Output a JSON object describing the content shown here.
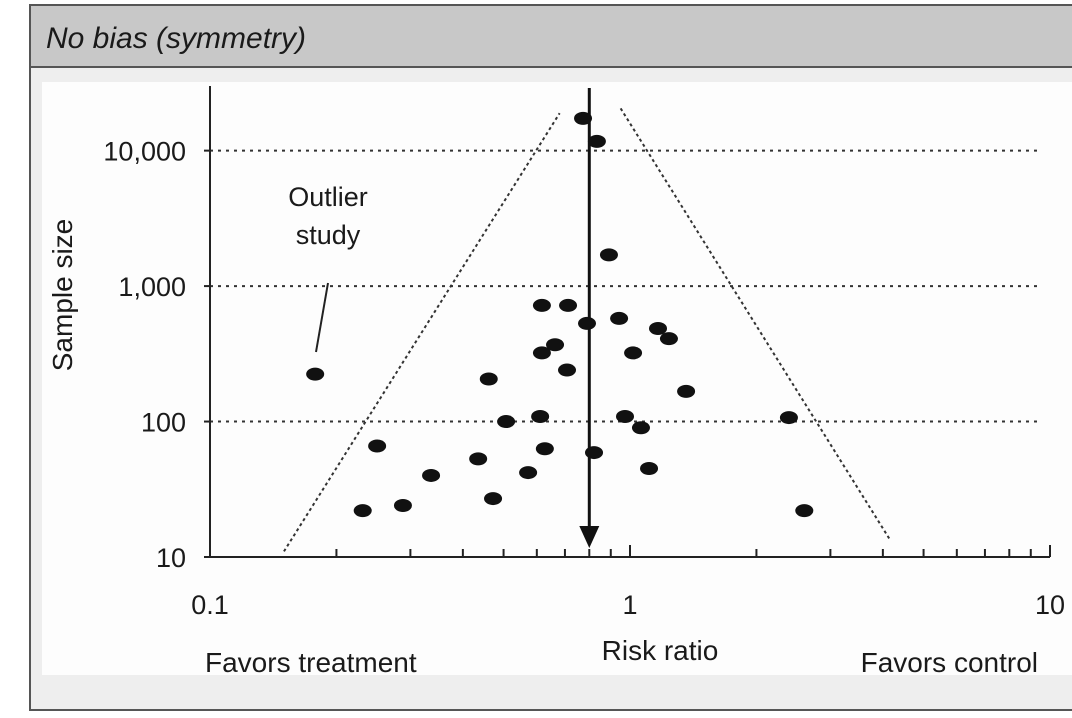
{
  "header": {
    "title": "No bias (symmetry)"
  },
  "chart_data": {
    "type": "scatter",
    "x_label": "Risk ratio",
    "y_label": "Sample size",
    "x_left_note": "Favors treatment",
    "x_right_note": "Favors control",
    "annotation": "Outlier study",
    "log_x": true,
    "log_y": true,
    "xlim": [
      0.1,
      10
    ],
    "ylim": [
      10,
      30000
    ],
    "xticks": [
      0.1,
      1,
      10
    ],
    "x_minor_ticks": [
      0.2,
      0.3,
      0.4,
      0.5,
      0.6,
      0.7,
      0.8,
      0.9,
      2,
      3,
      4,
      5,
      6,
      7,
      8,
      9
    ],
    "yticks": [
      {
        "value": 10,
        "label": "10"
      },
      {
        "value": 100,
        "label": "100"
      },
      {
        "value": 1000,
        "label": "1,000"
      },
      {
        "value": 10000,
        "label": "10,000"
      }
    ],
    "grid": true,
    "color": "#111111",
    "reference_x": 0.8,
    "funnel_lines": [
      {
        "x": [
          0.15,
          0.68
        ],
        "y": [
          11,
          18900
        ]
      },
      {
        "x": [
          0.95,
          4.16
        ],
        "y": [
          20500,
          13.4
        ]
      }
    ],
    "x": [
      0.773,
      0.834,
      0.891,
      0.617,
      0.712,
      0.79,
      0.942,
      1.166,
      1.238,
      0.663,
      0.617,
      1.017,
      0.708,
      0.461,
      0.178,
      1.36,
      0.611,
      0.507,
      0.973,
      1.062,
      2.39,
      0.25,
      0.627,
      0.821,
      0.435,
      0.572,
      1.11,
      0.336,
      0.472,
      0.288,
      0.231,
      2.6
    ],
    "values": [
      17300,
      11700,
      1700,
      720,
      720,
      530,
      577,
      486,
      409,
      369,
      321,
      321,
      240,
      206,
      224,
      167,
      109,
      100,
      109,
      90,
      107,
      66,
      63,
      59,
      53,
      42,
      45,
      40,
      27,
      24,
      22,
      22
    ]
  }
}
